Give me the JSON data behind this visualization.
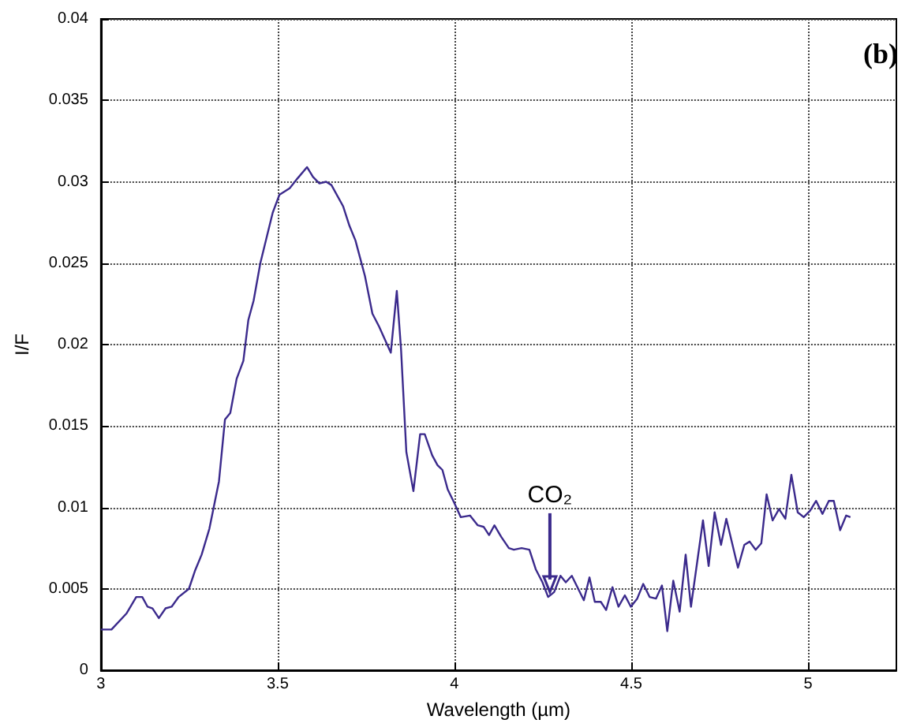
{
  "chart_data": {
    "type": "line",
    "title": "(b)",
    "xlabel": "Wavelength (µm)",
    "ylabel": "I/F",
    "annotations": [
      {
        "text": "CO₂",
        "x": 4.27,
        "y": 0.0048
      }
    ],
    "xlim": [
      3,
      5.25
    ],
    "xticks": [
      3,
      3.5,
      4,
      4.5,
      5
    ],
    "ylim": [
      0,
      0.04
    ],
    "yticks": [
      0,
      0.005,
      0.01,
      0.015,
      0.02,
      0.025,
      0.03,
      0.035,
      0.04
    ],
    "grid": true,
    "marker": "none",
    "line_style": "solid",
    "series": [
      {
        "color": "#3b2a8c",
        "x": [
          3.0,
          3.03,
          3.073,
          3.1,
          3.117,
          3.132,
          3.146,
          3.164,
          3.183,
          3.2,
          3.22,
          3.249,
          3.266,
          3.285,
          3.307,
          3.334,
          3.351,
          3.366,
          3.384,
          3.403,
          3.417,
          3.432,
          3.451,
          3.469,
          3.486,
          3.505,
          3.534,
          3.556,
          3.583,
          3.6,
          3.618,
          3.637,
          3.652,
          3.685,
          3.703,
          3.72,
          3.747,
          3.768,
          3.787,
          3.82,
          3.837,
          3.849,
          3.864,
          3.884,
          3.903,
          3.916,
          3.937,
          3.952,
          3.966,
          3.981,
          3.999,
          4.018,
          4.044,
          4.066,
          4.083,
          4.098,
          4.113,
          4.132,
          4.154,
          4.168,
          4.19,
          4.212,
          4.23,
          4.249,
          4.265,
          4.282,
          4.3,
          4.315,
          4.332,
          4.366,
          4.382,
          4.397,
          4.414,
          4.429,
          4.447,
          4.464,
          4.482,
          4.499,
          4.517,
          4.534,
          4.552,
          4.57,
          4.587,
          4.602,
          4.619,
          4.637,
          4.654,
          4.669,
          4.703,
          4.719,
          4.736,
          4.754,
          4.769,
          4.802,
          4.82,
          4.835,
          4.852,
          4.868,
          4.883,
          4.9,
          4.918,
          4.936,
          4.953,
          4.971,
          4.988,
          5.006,
          5.023,
          5.041,
          5.059,
          5.073,
          5.091,
          5.108,
          5.12
        ],
        "values": [
          0.0025,
          0.0025,
          0.0035,
          0.0045,
          0.0045,
          0.0039,
          0.0038,
          0.0032,
          0.0038,
          0.0039,
          0.0045,
          0.005,
          0.0061,
          0.0071,
          0.0087,
          0.0116,
          0.0154,
          0.0158,
          0.0179,
          0.019,
          0.0215,
          0.0227,
          0.025,
          0.0266,
          0.0281,
          0.0292,
          0.0296,
          0.0302,
          0.0309,
          0.0303,
          0.0299,
          0.03,
          0.0298,
          0.0285,
          0.0273,
          0.0264,
          0.0242,
          0.0219,
          0.0211,
          0.0195,
          0.0233,
          0.0197,
          0.0134,
          0.011,
          0.0145,
          0.0145,
          0.0132,
          0.0126,
          0.0123,
          0.0111,
          0.0103,
          0.0094,
          0.0095,
          0.0089,
          0.0088,
          0.0083,
          0.0089,
          0.0082,
          0.0075,
          0.0074,
          0.0075,
          0.0074,
          0.0062,
          0.0054,
          0.0045,
          0.0048,
          0.0058,
          0.0054,
          0.0058,
          0.0043,
          0.0057,
          0.0042,
          0.0042,
          0.0037,
          0.0051,
          0.0039,
          0.0046,
          0.0039,
          0.0044,
          0.0053,
          0.0045,
          0.0044,
          0.0052,
          0.0024,
          0.0055,
          0.0036,
          0.0071,
          0.0039,
          0.0092,
          0.0064,
          0.0097,
          0.0077,
          0.0093,
          0.0063,
          0.0077,
          0.0079,
          0.0074,
          0.0078,
          0.0108,
          0.0092,
          0.0099,
          0.0093,
          0.012,
          0.0097,
          0.0094,
          0.0098,
          0.0104,
          0.0096,
          0.0104,
          0.0104,
          0.0086,
          0.0095,
          0.0094
        ]
      }
    ]
  }
}
